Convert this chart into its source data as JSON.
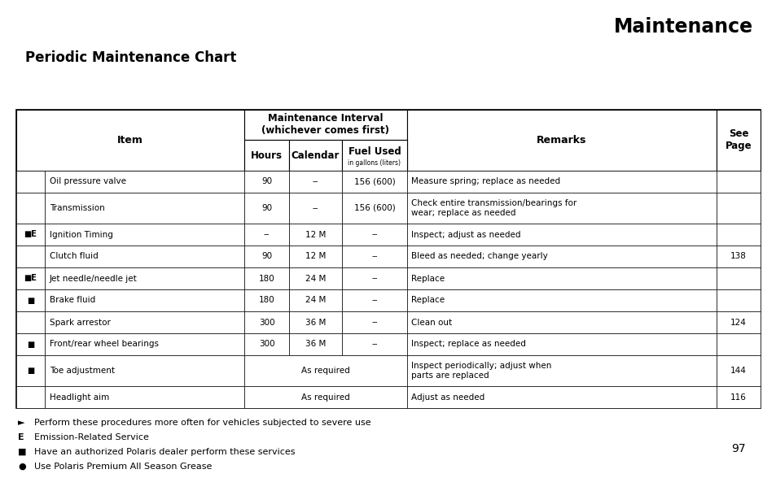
{
  "title": "Maintenance",
  "subtitle": "Periodic Maintenance Chart",
  "page_number": "97",
  "rows": [
    {
      "prefix": "",
      "item": "Oil pressure valve",
      "hours": "90",
      "calendar": "--",
      "fuel": "156 (600)",
      "remarks": "Measure spring; replace as needed",
      "see_page": "",
      "span": false
    },
    {
      "prefix": "",
      "item": "Transmission",
      "hours": "90",
      "calendar": "--",
      "fuel": "156 (600)",
      "remarks": "Check entire transmission/bearings for\nwear; replace as needed",
      "see_page": "",
      "span": false
    },
    {
      "prefix": "■E",
      "item": "Ignition Timing",
      "hours": "--",
      "calendar": "12 M",
      "fuel": "--",
      "remarks": "Inspect; adjust as needed",
      "see_page": "",
      "span": false
    },
    {
      "prefix": "",
      "item": "Clutch fluid",
      "hours": "90",
      "calendar": "12 M",
      "fuel": "--",
      "remarks": "Bleed as needed; change yearly",
      "see_page": "138",
      "span": false
    },
    {
      "prefix": "■E",
      "item": "Jet needle/needle jet",
      "hours": "180",
      "calendar": "24 M",
      "fuel": "--",
      "remarks": "Replace",
      "see_page": "",
      "span": false
    },
    {
      "prefix": "■",
      "item": "Brake fluid",
      "hours": "180",
      "calendar": "24 M",
      "fuel": "--",
      "remarks": "Replace",
      "see_page": "",
      "span": false
    },
    {
      "prefix": "",
      "item": "Spark arrestor",
      "hours": "300",
      "calendar": "36 M",
      "fuel": "--",
      "remarks": "Clean out",
      "see_page": "124",
      "span": false
    },
    {
      "prefix": "■",
      "item": "Front/rear wheel bearings",
      "hours": "300",
      "calendar": "36 M",
      "fuel": "--",
      "remarks": "Inspect; replace as needed",
      "see_page": "",
      "span": false
    },
    {
      "prefix": "■",
      "item": "Toe adjustment",
      "hours": "",
      "calendar": "As required",
      "fuel": "",
      "remarks": "Inspect periodically; adjust when\nparts are replaced",
      "see_page": "144",
      "span": true
    },
    {
      "prefix": "",
      "item": "Headlight aim",
      "hours": "",
      "calendar": "As required",
      "fuel": "",
      "remarks": "Adjust as needed",
      "see_page": "116",
      "span": true
    }
  ],
  "footnotes": [
    [
      "►",
      "Perform these procedures more often for vehicles subjected to severe use"
    ],
    [
      "E",
      "Emission-Related Service"
    ],
    [
      "■",
      "Have an authorized Polaris dealer perform these services"
    ],
    [
      "●",
      "Use Polaris Premium All Season Grease"
    ]
  ]
}
